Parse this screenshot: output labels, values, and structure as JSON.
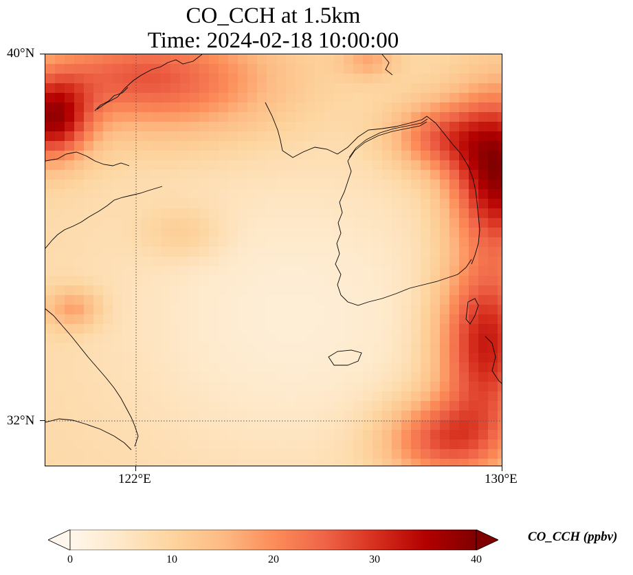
{
  "title": {
    "line1": "CO_CCH at 1.5km",
    "line2": "Time: 2024-02-18 10:00:00"
  },
  "axes": {
    "lat_labels": [
      "40°N",
      "32°N"
    ],
    "lon_labels": [
      "122°E",
      "130°E"
    ]
  },
  "colorbar": {
    "label": "CO_CCH (ppbv)",
    "ticks": [
      "0",
      "10",
      "20",
      "30",
      "40"
    ],
    "min": 0,
    "max": 40,
    "colormap": "OrRd",
    "extend": "both"
  },
  "colors": {
    "stops": [
      "#fff7ec",
      "#fee8c8",
      "#fdd49e",
      "#fdbb84",
      "#fc8d59",
      "#ef6548",
      "#d7301f",
      "#b30000",
      "#7f0000"
    ]
  }
}
